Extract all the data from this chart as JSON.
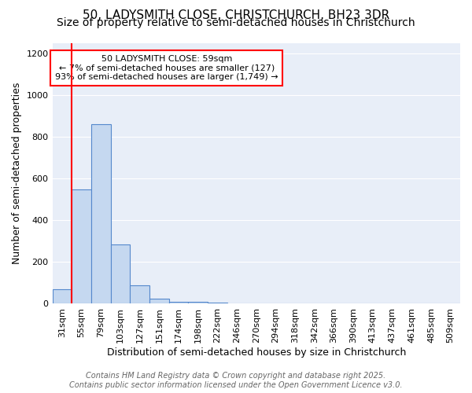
{
  "title": "50, LADYSMITH CLOSE, CHRISTCHURCH, BH23 3DR",
  "subtitle": "Size of property relative to semi-detached houses in Christchurch",
  "xlabel": "Distribution of semi-detached houses by size in Christchurch",
  "ylabel": "Number of semi-detached properties",
  "bin_labels": [
    "31sqm",
    "55sqm",
    "79sqm",
    "103sqm",
    "127sqm",
    "151sqm",
    "174sqm",
    "198sqm",
    "222sqm",
    "246sqm",
    "270sqm",
    "294sqm",
    "318sqm",
    "342sqm",
    "366sqm",
    "390sqm",
    "413sqm",
    "437sqm",
    "461sqm",
    "485sqm",
    "509sqm"
  ],
  "bin_values": [
    70,
    550,
    860,
    285,
    90,
    25,
    10,
    8,
    5,
    0,
    0,
    0,
    0,
    0,
    0,
    0,
    0,
    0,
    0,
    0,
    0
  ],
  "bar_color": "#c5d8f0",
  "bar_edge_color": "#5588cc",
  "red_line_x": 0.5,
  "annotation_line1": "50 LADYSMITH CLOSE: 59sqm",
  "annotation_line2": "← 7% of semi-detached houses are smaller (127)",
  "annotation_line3": "93% of semi-detached houses are larger (1,749) →",
  "annotation_box_color": "white",
  "annotation_box_edge_color": "red",
  "red_line_color": "red",
  "ylim": [
    0,
    1250
  ],
  "yticks": [
    0,
    200,
    400,
    600,
    800,
    1000,
    1200
  ],
  "footer_text": "Contains HM Land Registry data © Crown copyright and database right 2025.\nContains public sector information licensed under the Open Government Licence v3.0.",
  "background_color": "#ffffff",
  "plot_bg_color": "#e8eef8",
  "grid_color": "#ffffff",
  "title_fontsize": 11,
  "subtitle_fontsize": 10,
  "axis_label_fontsize": 9,
  "tick_fontsize": 8,
  "footer_fontsize": 7
}
